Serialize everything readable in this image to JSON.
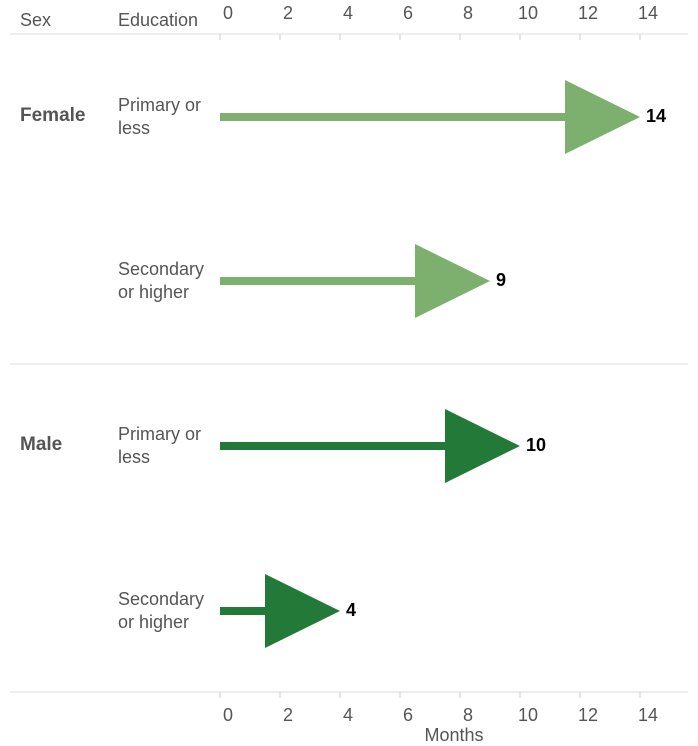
{
  "chart_data": {
    "type": "arrow",
    "column_headers": [
      "Sex",
      "Education"
    ],
    "x_label": "Months",
    "xlim": [
      0,
      15.6
    ],
    "xticks": [
      0,
      2,
      4,
      6,
      8,
      10,
      12,
      14
    ],
    "groups": [
      {
        "name": "Female",
        "color": "#7db06f",
        "categories": [
          "Primary or less",
          "Secondary or higher"
        ],
        "values": [
          14,
          9
        ]
      },
      {
        "name": "Male",
        "color": "#237a38",
        "categories": [
          "Primary or less",
          "Secondary or higher"
        ],
        "values": [
          10,
          4
        ]
      }
    ]
  }
}
